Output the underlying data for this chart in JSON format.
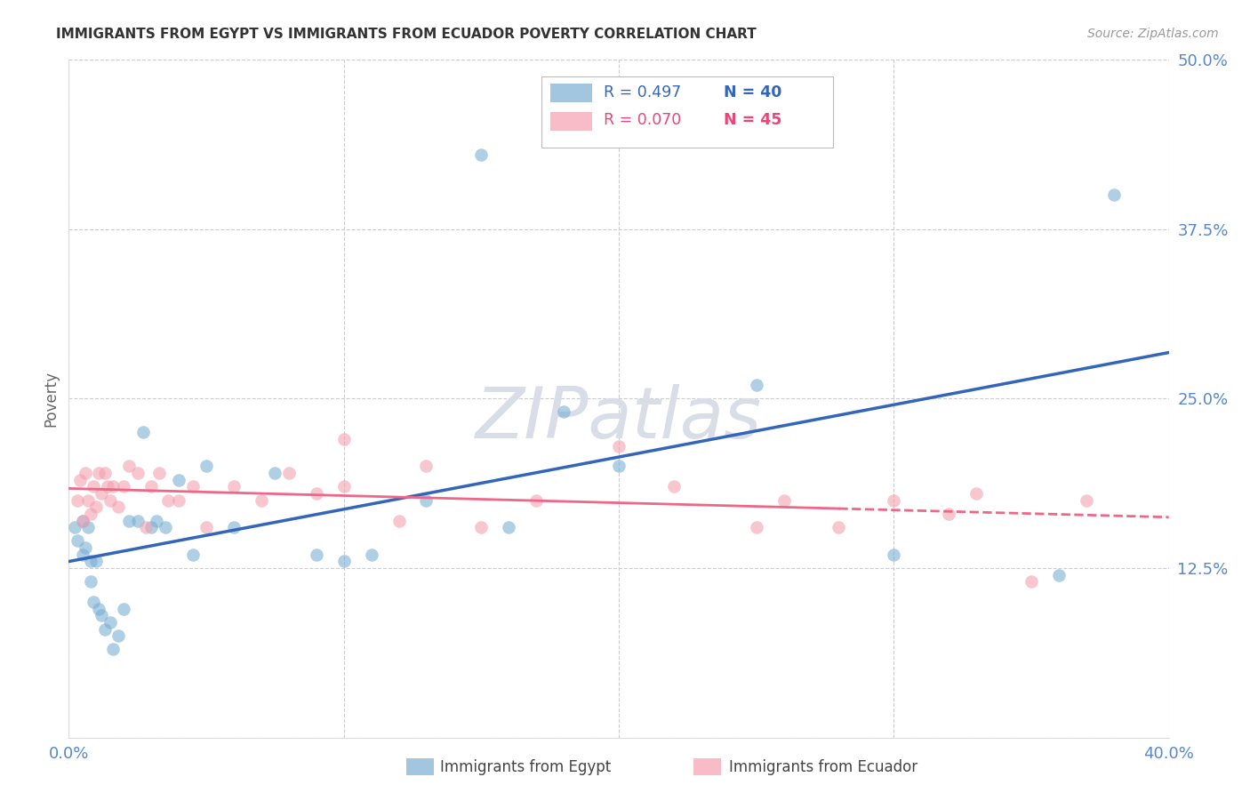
{
  "title": "IMMIGRANTS FROM EGYPT VS IMMIGRANTS FROM ECUADOR POVERTY CORRELATION CHART",
  "source": "Source: ZipAtlas.com",
  "ylabel": "Poverty",
  "xlim": [
    0.0,
    0.4
  ],
  "ylim": [
    0.0,
    0.5
  ],
  "xticks": [
    0.0,
    0.1,
    0.2,
    0.3,
    0.4
  ],
  "yticks": [
    0.0,
    0.125,
    0.25,
    0.375,
    0.5
  ],
  "ytick_labels": [
    "",
    "12.5%",
    "25.0%",
    "37.5%",
    "50.0%"
  ],
  "xtick_labels": [
    "0.0%",
    "",
    "",
    "",
    "40.0%"
  ],
  "egypt_color": "#7BAFD4",
  "ecuador_color": "#F4A0B0",
  "egypt_line_color": "#3366BB",
  "ecuador_line_color": "#EE6688",
  "background_color": "#FFFFFF",
  "egypt_x": [
    0.002,
    0.003,
    0.005,
    0.005,
    0.006,
    0.007,
    0.008,
    0.008,
    0.009,
    0.01,
    0.011,
    0.012,
    0.013,
    0.015,
    0.016,
    0.018,
    0.02,
    0.022,
    0.025,
    0.027,
    0.03,
    0.032,
    0.035,
    0.04,
    0.045,
    0.05,
    0.06,
    0.075,
    0.09,
    0.1,
    0.11,
    0.13,
    0.15,
    0.18,
    0.2,
    0.25,
    0.3,
    0.36,
    0.38,
    0.16
  ],
  "egypt_y": [
    0.155,
    0.145,
    0.135,
    0.16,
    0.14,
    0.155,
    0.13,
    0.115,
    0.1,
    0.13,
    0.095,
    0.09,
    0.08,
    0.085,
    0.065,
    0.075,
    0.095,
    0.16,
    0.16,
    0.225,
    0.155,
    0.16,
    0.155,
    0.19,
    0.135,
    0.2,
    0.155,
    0.195,
    0.135,
    0.13,
    0.135,
    0.175,
    0.43,
    0.24,
    0.2,
    0.26,
    0.135,
    0.12,
    0.4,
    0.155
  ],
  "ecuador_x": [
    0.003,
    0.004,
    0.005,
    0.006,
    0.007,
    0.008,
    0.009,
    0.01,
    0.011,
    0.012,
    0.013,
    0.014,
    0.015,
    0.016,
    0.018,
    0.02,
    0.022,
    0.025,
    0.028,
    0.03,
    0.033,
    0.036,
    0.04,
    0.045,
    0.05,
    0.06,
    0.07,
    0.08,
    0.09,
    0.1,
    0.12,
    0.13,
    0.15,
    0.17,
    0.2,
    0.22,
    0.25,
    0.28,
    0.3,
    0.32,
    0.35,
    0.37,
    0.1,
    0.26,
    0.33
  ],
  "ecuador_y": [
    0.175,
    0.19,
    0.16,
    0.195,
    0.175,
    0.165,
    0.185,
    0.17,
    0.195,
    0.18,
    0.195,
    0.185,
    0.175,
    0.185,
    0.17,
    0.185,
    0.2,
    0.195,
    0.155,
    0.185,
    0.195,
    0.175,
    0.175,
    0.185,
    0.155,
    0.185,
    0.175,
    0.195,
    0.18,
    0.185,
    0.16,
    0.2,
    0.155,
    0.175,
    0.215,
    0.185,
    0.155,
    0.155,
    0.175,
    0.165,
    0.115,
    0.175,
    0.22,
    0.175,
    0.18
  ]
}
